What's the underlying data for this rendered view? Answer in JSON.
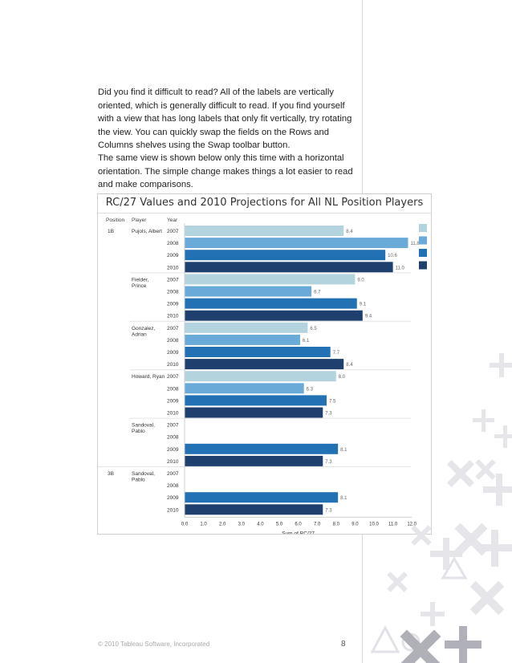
{
  "paragraphs": {
    "p1": "Did you find it difficult to read? All of the labels are vertically oriented, which is generally difficult to read. If you find yourself with a view that has long labels that only fit vertically, try rotating the view. You can quickly swap the fields on the Rows and Columns shelves using the Swap toolbar button.",
    "p2": "The same view is shown below only this time with a horizontal orientation. The simple change makes things a lot easier to read and make comparisons."
  },
  "footer": {
    "copyright": "© 2010 Tableau Software, Incorporated",
    "page_number": "8"
  },
  "colors": {
    "2007": "#b3d4df",
    "2008": "#6aaad8",
    "2009": "#2271b5",
    "2010": "#1f3f6e"
  },
  "chart_data": {
    "type": "bar",
    "orientation": "horizontal",
    "title": "RC/27 Values and 2010 Projections for All NL Position Players",
    "header": {
      "position": "Position",
      "player": "Player",
      "year": "Year"
    },
    "xlabel": "Sum of RC/27",
    "xlim": [
      0,
      12
    ],
    "xticks": [
      "0.0",
      "1.0",
      "2.0",
      "3.0",
      "4.0",
      "5.0",
      "6.0",
      "7.0",
      "8.0",
      "9.0",
      "10.0",
      "11.0",
      "12.0"
    ],
    "legend": [
      "2007",
      "2008",
      "2009",
      "2010"
    ],
    "legend_position": "right",
    "groups": [
      {
        "position": "1B",
        "player": "Pujols, Albert",
        "rows": [
          {
            "year": "2007",
            "value": 8.4
          },
          {
            "year": "2008",
            "value": 11.8
          },
          {
            "year": "2009",
            "value": 10.6
          },
          {
            "year": "2010",
            "value": 11.0
          }
        ]
      },
      {
        "position": "",
        "player": "Fielder, Prince",
        "rows": [
          {
            "year": "2007",
            "value": 9.0
          },
          {
            "year": "2008",
            "value": 6.7
          },
          {
            "year": "2009",
            "value": 9.1
          },
          {
            "year": "2010",
            "value": 9.4
          }
        ]
      },
      {
        "position": "",
        "player": "Gonzalez, Adrian",
        "rows": [
          {
            "year": "2007",
            "value": 6.5
          },
          {
            "year": "2008",
            "value": 6.1
          },
          {
            "year": "2009",
            "value": 7.7
          },
          {
            "year": "2010",
            "value": 8.4
          }
        ]
      },
      {
        "position": "",
        "player": "Howard, Ryan",
        "rows": [
          {
            "year": "2007",
            "value": 8.0
          },
          {
            "year": "2008",
            "value": 6.3
          },
          {
            "year": "2009",
            "value": 7.5
          },
          {
            "year": "2010",
            "value": 7.3
          }
        ]
      },
      {
        "position": "",
        "player": "Sandoval, Pablo",
        "rows": [
          {
            "year": "2007",
            "value": null
          },
          {
            "year": "2008",
            "value": null
          },
          {
            "year": "2009",
            "value": 8.1
          },
          {
            "year": "2010",
            "value": 7.3
          }
        ]
      },
      {
        "position": "3B",
        "player": "Sandoval, Pablo",
        "rows": [
          {
            "year": "2007",
            "value": null
          },
          {
            "year": "2008",
            "value": null
          },
          {
            "year": "2009",
            "value": 8.1
          },
          {
            "year": "2010",
            "value": 7.3
          }
        ]
      }
    ]
  }
}
